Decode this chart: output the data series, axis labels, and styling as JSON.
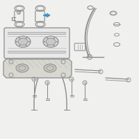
{
  "bg_color": "#f0f0ee",
  "line_color": "#8a8a8a",
  "highlight_color": "#3a8fc0",
  "light_gray": "#b0b0b0",
  "fig_size": [
    2.0,
    2.0
  ],
  "dpi": 100,
  "lw_main": 0.7,
  "lw_thin": 0.4
}
